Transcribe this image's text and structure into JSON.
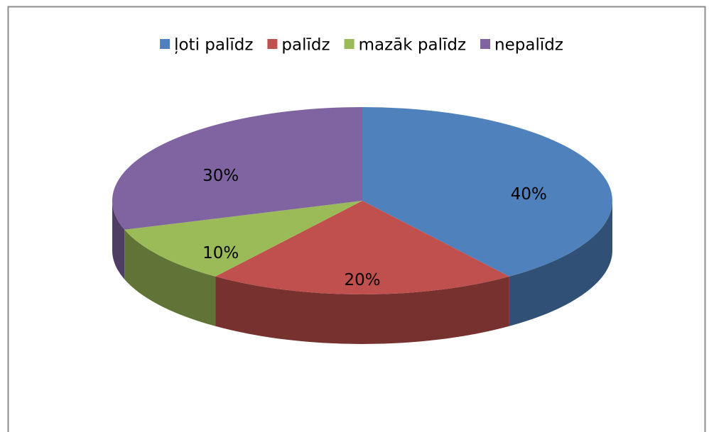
{
  "chart_data": {
    "type": "pie",
    "categories": [
      "ļoti palīdz",
      "palīdz",
      "mazāk palīdz",
      "nepalīdz"
    ],
    "values": [
      40,
      20,
      10,
      30
    ],
    "value_labels": [
      "40%",
      "20%",
      "10%",
      "30%"
    ],
    "colors": [
      "#4f81bd",
      "#c0504d",
      "#9bbb59",
      "#8064a2"
    ],
    "legend": "top"
  }
}
